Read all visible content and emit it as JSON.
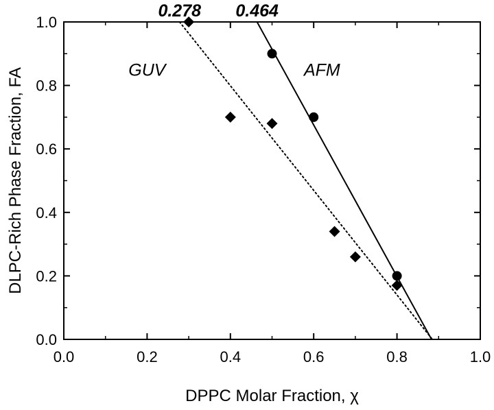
{
  "chart_data": {
    "type": "scatter",
    "xlabel": "DPPC Molar Fraction, χ",
    "ylabel": "DLPC-Rich Phase Fraction, FA",
    "xlim": [
      0.0,
      1.0
    ],
    "ylim": [
      0.0,
      1.0
    ],
    "x_ticks": [
      "0.0",
      "0.2",
      "0.4",
      "0.6",
      "0.8",
      "1.0"
    ],
    "y_ticks": [
      "0.0",
      "0.2",
      "0.4",
      "0.6",
      "0.8",
      "1.0"
    ],
    "grid": false,
    "series": [
      {
        "name": "GUV",
        "marker": "diamond",
        "points": [
          {
            "x": 0.3,
            "y": 1.0
          },
          {
            "x": 0.4,
            "y": 0.7
          },
          {
            "x": 0.5,
            "y": 0.68
          },
          {
            "x": 0.65,
            "y": 0.34
          },
          {
            "x": 0.7,
            "y": 0.26
          },
          {
            "x": 0.8,
            "y": 0.17
          }
        ],
        "fit": {
          "style": "dotted",
          "x_at_y1": 0.278,
          "x_at_y0": 0.885
        }
      },
      {
        "name": "AFM",
        "marker": "circle",
        "points": [
          {
            "x": 0.5,
            "y": 0.9
          },
          {
            "x": 0.6,
            "y": 0.7
          },
          {
            "x": 0.8,
            "y": 0.2
          }
        ],
        "fit": {
          "style": "solid",
          "x_at_y1": 0.464,
          "x_at_y0": 0.883
        }
      }
    ],
    "annotations": [
      {
        "text": "0.278",
        "x": 0.278,
        "y": 1.0,
        "style": "bold-italic"
      },
      {
        "text": "0.464",
        "x": 0.464,
        "y": 1.0,
        "style": "bold-italic"
      },
      {
        "text": "GUV",
        "x": 0.2,
        "y": 0.85,
        "style": "italic"
      },
      {
        "text": "AFM",
        "x": 0.62,
        "y": 0.85,
        "style": "italic"
      }
    ]
  }
}
